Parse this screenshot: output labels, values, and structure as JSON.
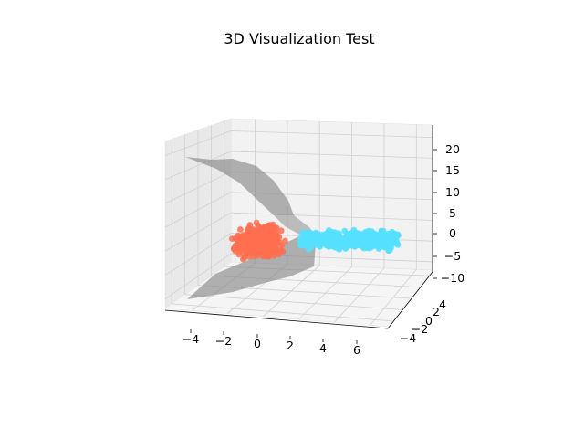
{
  "chart_data": {
    "type": "scatter",
    "title": "3D Visualization Test",
    "projection": "3d",
    "grid": true,
    "legend": "none",
    "x_ticks": [
      "−4",
      "−2",
      "0",
      "2",
      "4",
      "6"
    ],
    "y_ticks": [
      "−4",
      "−2",
      "0",
      "2",
      "4"
    ],
    "z_ticks": [
      "−10",
      "−5",
      "0",
      "5",
      "10",
      "15",
      "20"
    ],
    "xlim": [
      -5.5,
      7.0
    ],
    "ylim": [
      -5.0,
      5.0
    ],
    "zlim": [
      -12,
      23
    ],
    "series": [
      {
        "color": "#ff6f4f",
        "marker": "o",
        "x_range": [
          -4.5,
          -1.5
        ],
        "y_range": [
          -3.0,
          3.0
        ],
        "z_range": [
          -5,
          0
        ]
      },
      {
        "color": "#56e0ff",
        "marker": "o",
        "x_range": [
          -1.0,
          6.5
        ],
        "y_range": [
          -3.0,
          3.0
        ],
        "z_range": [
          -4,
          1
        ]
      }
    ],
    "surface": {
      "color": "#808080",
      "opacity": 0.6
    }
  }
}
